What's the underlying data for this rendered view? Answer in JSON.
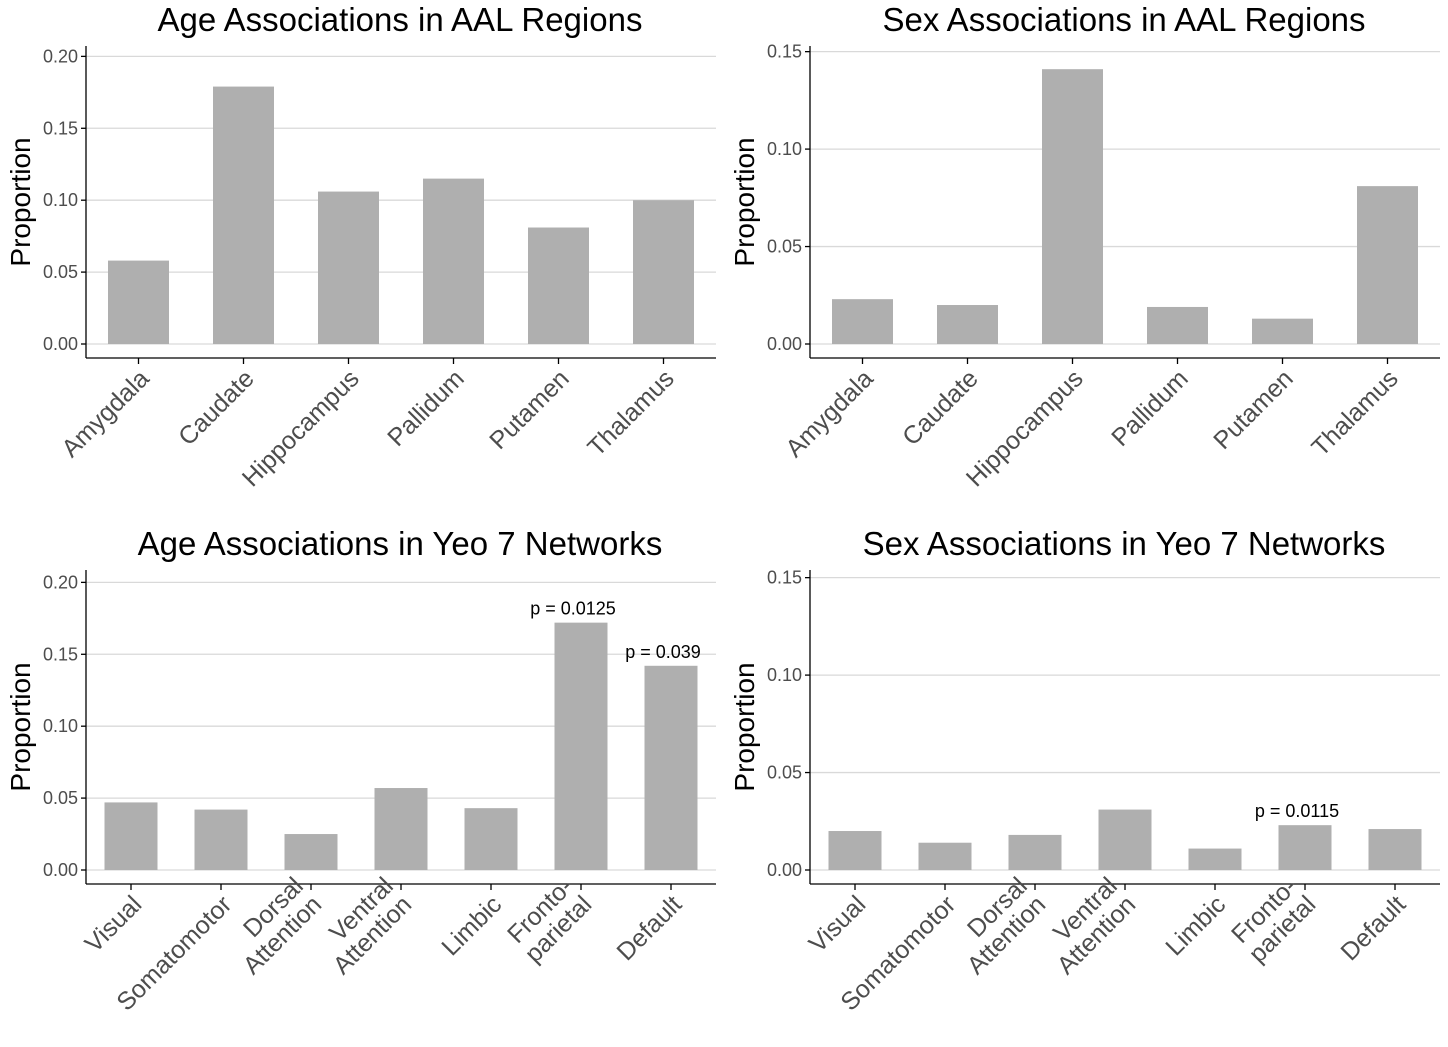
{
  "chart_data": [
    {
      "type": "bar",
      "title": "Age Associations in AAL Regions",
      "ylabel": "Proportion",
      "xlabel": "",
      "ylim": [
        0,
        0.21
      ],
      "yticks": [
        "0.00",
        "0.05",
        "0.10",
        "0.15",
        "0.20"
      ],
      "categories": [
        [
          "Amygdala"
        ],
        [
          "Caudate"
        ],
        [
          "Hippocampus"
        ],
        [
          "Pallidum"
        ],
        [
          "Putamen"
        ],
        [
          "Thalamus"
        ]
      ],
      "values": [
        0.058,
        0.179,
        0.106,
        0.115,
        0.081,
        0.1
      ],
      "annotations": [],
      "grid": "horizontal"
    },
    {
      "type": "bar",
      "title": "Sex Associations in AAL Regions",
      "ylabel": "Proportion",
      "xlabel": "",
      "ylim": [
        0,
        0.157
      ],
      "yticks": [
        "0.00",
        "0.05",
        "0.10",
        "0.15"
      ],
      "categories": [
        [
          "Amygdala"
        ],
        [
          "Caudate"
        ],
        [
          "Hippocampus"
        ],
        [
          "Pallidum"
        ],
        [
          "Putamen"
        ],
        [
          "Thalamus"
        ]
      ],
      "values": [
        0.023,
        0.02,
        0.141,
        0.019,
        0.013,
        0.081
      ],
      "annotations": [],
      "grid": "horizontal"
    },
    {
      "type": "bar",
      "title": "Age Associations in Yeo 7 Networks",
      "ylabel": "Proportion",
      "xlabel": "",
      "ylim": [
        0,
        0.21
      ],
      "yticks": [
        "0.00",
        "0.05",
        "0.10",
        "0.15",
        "0.20"
      ],
      "categories": [
        [
          "Visual"
        ],
        [
          "Somatomotor"
        ],
        [
          "Dorsal",
          "Attention"
        ],
        [
          "Ventral",
          "Attention"
        ],
        [
          "Limbic"
        ],
        [
          "Fronto-",
          "parietal"
        ],
        [
          "Default"
        ]
      ],
      "values": [
        0.047,
        0.042,
        0.025,
        0.057,
        0.043,
        0.172,
        0.142
      ],
      "annotations": [
        {
          "category_index": 5,
          "text": "p = 0.0125"
        },
        {
          "category_index": 6,
          "text": "p = 0.039"
        }
      ],
      "grid": "horizontal"
    },
    {
      "type": "bar",
      "title": "Sex Associations in Yeo 7 Networks",
      "ylabel": "Proportion",
      "xlabel": "",
      "ylim": [
        0,
        0.157
      ],
      "yticks": [
        "0.00",
        "0.05",
        "0.10",
        "0.15"
      ],
      "categories": [
        [
          "Visual"
        ],
        [
          "Somatomotor"
        ],
        [
          "Dorsal",
          "Attention"
        ],
        [
          "Ventral",
          "Attention"
        ],
        [
          "Limbic"
        ],
        [
          "Fronto-",
          "parietal"
        ],
        [
          "Default"
        ]
      ],
      "values": [
        0.02,
        0.014,
        0.018,
        0.031,
        0.011,
        0.023,
        0.021
      ],
      "annotations": [
        {
          "category_index": 5,
          "text": "p = 0.0115"
        }
      ],
      "grid": "horizontal"
    }
  ],
  "colors": {
    "bar": "#afafaf",
    "grid": "#d9d9d9",
    "axis": "#000000",
    "tick_text": "#4d4d4d",
    "title_text": "#000000"
  }
}
